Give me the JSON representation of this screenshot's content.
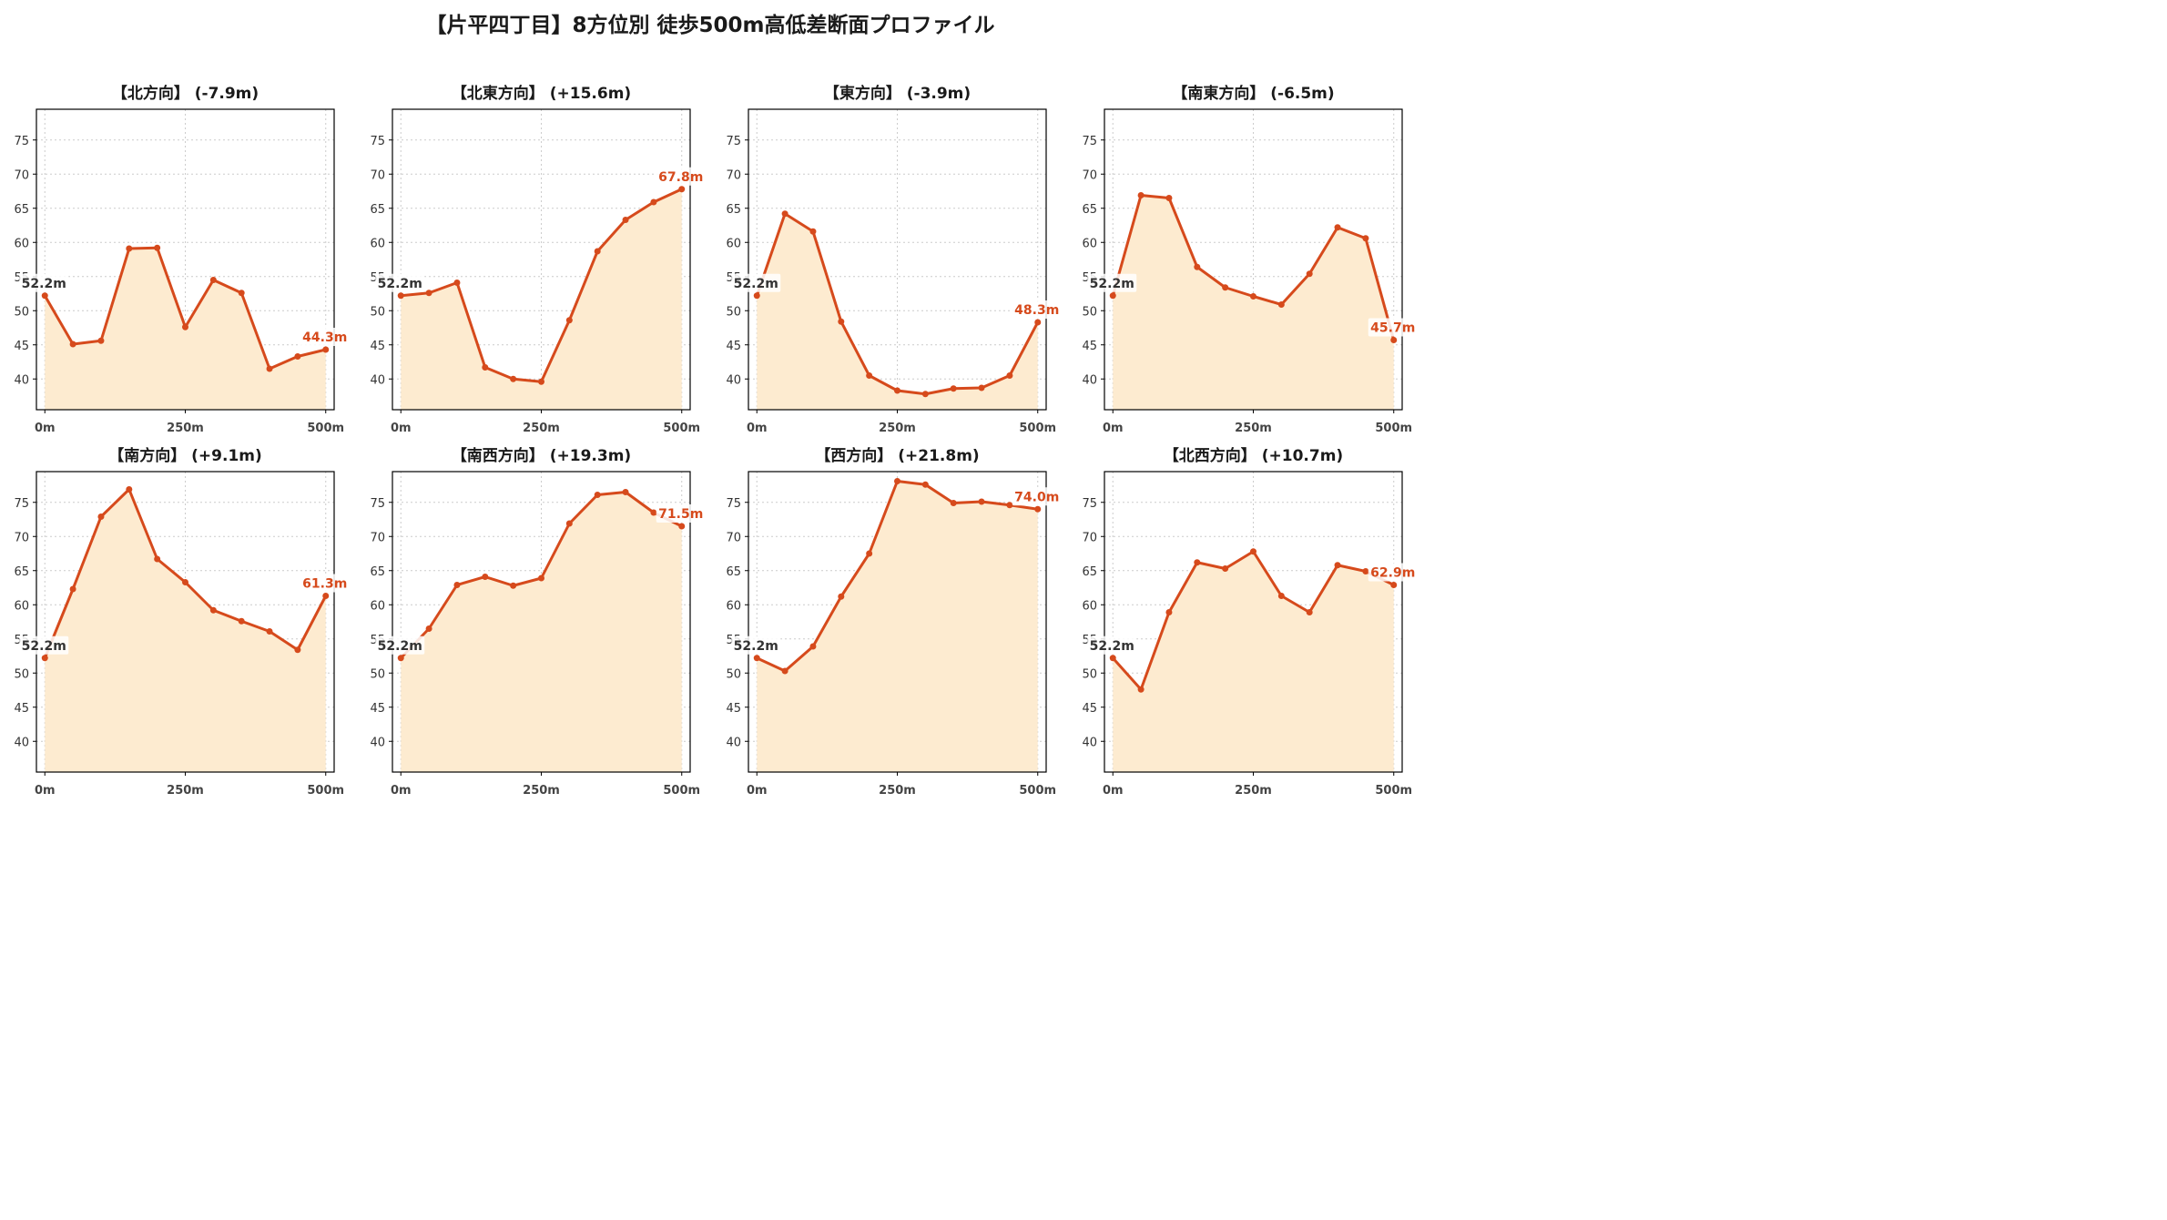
{
  "title": "【片平四丁目】8方位別 徒歩500m高低差断面プロファイル",
  "colors": {
    "line": "#d64a1c",
    "fill": "#fdebd0",
    "grid": "#cccccc",
    "label_box": "#ffffff"
  },
  "chart_data": [
    {
      "type": "area",
      "title": "【北方向】 (-7.9m)",
      "x": [
        0,
        50,
        100,
        150,
        200,
        250,
        300,
        350,
        400,
        450,
        500
      ],
      "x_ticks": [
        "0m",
        "250m",
        "500m"
      ],
      "y_ticks": [
        40,
        45,
        50,
        55,
        60,
        65,
        70,
        75
      ],
      "ylim": [
        35.5,
        79.5
      ],
      "xlim": [
        -15,
        515
      ],
      "grid": true,
      "values": [
        52.2,
        45.1,
        45.6,
        59.1,
        59.2,
        47.6,
        54.5,
        52.6,
        41.5,
        43.3,
        44.3
      ],
      "start_label": "52.2m",
      "end_label": "44.3m"
    },
    {
      "type": "area",
      "title": "【北東方向】 (+15.6m)",
      "x": [
        0,
        50,
        100,
        150,
        200,
        250,
        300,
        350,
        400,
        450,
        500
      ],
      "x_ticks": [
        "0m",
        "250m",
        "500m"
      ],
      "y_ticks": [
        40,
        45,
        50,
        55,
        60,
        65,
        70,
        75
      ],
      "ylim": [
        35.5,
        79.5
      ],
      "xlim": [
        -15,
        515
      ],
      "grid": true,
      "values": [
        52.2,
        52.6,
        54.1,
        41.7,
        40.0,
        39.6,
        48.6,
        58.7,
        63.3,
        65.9,
        67.8
      ],
      "start_label": "52.2m",
      "end_label": "67.8m"
    },
    {
      "type": "area",
      "title": "【東方向】 (-3.9m)",
      "x": [
        0,
        50,
        100,
        150,
        200,
        250,
        300,
        350,
        400,
        450,
        500
      ],
      "x_ticks": [
        "0m",
        "250m",
        "500m"
      ],
      "y_ticks": [
        40,
        45,
        50,
        55,
        60,
        65,
        70,
        75
      ],
      "ylim": [
        35.5,
        79.5
      ],
      "xlim": [
        -15,
        515
      ],
      "grid": true,
      "values": [
        52.2,
        64.2,
        61.6,
        48.4,
        40.5,
        38.3,
        37.8,
        38.6,
        38.7,
        40.5,
        48.3
      ],
      "start_label": "52.2m",
      "end_label": "48.3m"
    },
    {
      "type": "area",
      "title": "【南東方向】 (-6.5m)",
      "x": [
        0,
        50,
        100,
        150,
        200,
        250,
        300,
        350,
        400,
        450,
        500
      ],
      "x_ticks": [
        "0m",
        "250m",
        "500m"
      ],
      "y_ticks": [
        40,
        45,
        50,
        55,
        60,
        65,
        70,
        75
      ],
      "ylim": [
        35.5,
        79.5
      ],
      "xlim": [
        -15,
        515
      ],
      "grid": true,
      "values": [
        52.2,
        66.9,
        66.5,
        56.4,
        53.4,
        52.1,
        50.9,
        55.4,
        62.2,
        60.6,
        45.7
      ],
      "start_label": "52.2m",
      "end_label": "45.7m"
    },
    {
      "type": "area",
      "title": "【南方向】 (+9.1m)",
      "x": [
        0,
        50,
        100,
        150,
        200,
        250,
        300,
        350,
        400,
        450,
        500
      ],
      "x_ticks": [
        "0m",
        "250m",
        "500m"
      ],
      "y_ticks": [
        40,
        45,
        50,
        55,
        60,
        65,
        70,
        75
      ],
      "ylim": [
        35.5,
        79.5
      ],
      "xlim": [
        -15,
        515
      ],
      "grid": true,
      "values": [
        52.2,
        62.3,
        72.9,
        76.9,
        66.7,
        63.3,
        59.2,
        57.6,
        56.1,
        53.4,
        61.3
      ],
      "start_label": "52.2m",
      "end_label": "61.3m"
    },
    {
      "type": "area",
      "title": "【南西方向】 (+19.3m)",
      "x": [
        0,
        50,
        100,
        150,
        200,
        250,
        300,
        350,
        400,
        450,
        500
      ],
      "x_ticks": [
        "0m",
        "250m",
        "500m"
      ],
      "y_ticks": [
        40,
        45,
        50,
        55,
        60,
        65,
        70,
        75
      ],
      "ylim": [
        35.5,
        79.5
      ],
      "xlim": [
        -15,
        515
      ],
      "grid": true,
      "values": [
        52.2,
        56.5,
        62.9,
        64.1,
        62.8,
        63.9,
        71.9,
        76.1,
        76.5,
        73.5,
        71.5
      ],
      "start_label": "52.2m",
      "end_label": "71.5m"
    },
    {
      "type": "area",
      "title": "【西方向】 (+21.8m)",
      "x": [
        0,
        50,
        100,
        150,
        200,
        250,
        300,
        350,
        400,
        450,
        500
      ],
      "x_ticks": [
        "0m",
        "250m",
        "500m"
      ],
      "y_ticks": [
        40,
        45,
        50,
        55,
        60,
        65,
        70,
        75
      ],
      "ylim": [
        35.5,
        79.5
      ],
      "xlim": [
        -15,
        515
      ],
      "grid": true,
      "values": [
        52.2,
        50.3,
        53.9,
        61.2,
        67.5,
        78.1,
        77.6,
        74.9,
        75.1,
        74.6,
        74.0
      ],
      "start_label": "52.2m",
      "end_label": "74.0m"
    },
    {
      "type": "area",
      "title": "【北西方向】 (+10.7m)",
      "x": [
        0,
        50,
        100,
        150,
        200,
        250,
        300,
        350,
        400,
        450,
        500
      ],
      "x_ticks": [
        "0m",
        "250m",
        "500m"
      ],
      "y_ticks": [
        40,
        45,
        50,
        55,
        60,
        65,
        70,
        75
      ],
      "ylim": [
        35.5,
        79.5
      ],
      "xlim": [
        -15,
        515
      ],
      "grid": true,
      "values": [
        52.2,
        47.6,
        58.9,
        66.2,
        65.3,
        67.8,
        61.3,
        58.9,
        65.8,
        64.9,
        62.9
      ],
      "start_label": "52.2m",
      "end_label": "62.9m"
    }
  ]
}
